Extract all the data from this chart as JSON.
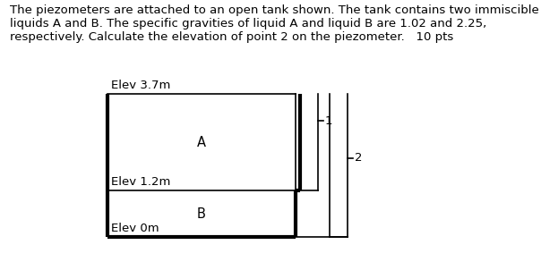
{
  "title_text": "The piezometers are attached to an open tank shown. The tank contains two immiscible\nliquids A and B. The specific gravities of liquid A and liquid B are 1.02 and 2.25,\nrespectively. Calculate the elevation of point 2 on the piezometer.   10 pts",
  "title_fontsize": 9.5,
  "bg_color": "#ffffff",
  "line_color": "#000000",
  "lw_thick": 3.0,
  "lw_thin": 1.2,
  "elev_37_label": "Elev 3.7m",
  "elev_12_label": "Elev 1.2m",
  "elev_0_label": "Elev 0m",
  "label_A": "A",
  "label_B": "B",
  "label_1": "1",
  "label_2": "2",
  "fontsize_label": 9.5,
  "fontsize_AB": 10.5
}
